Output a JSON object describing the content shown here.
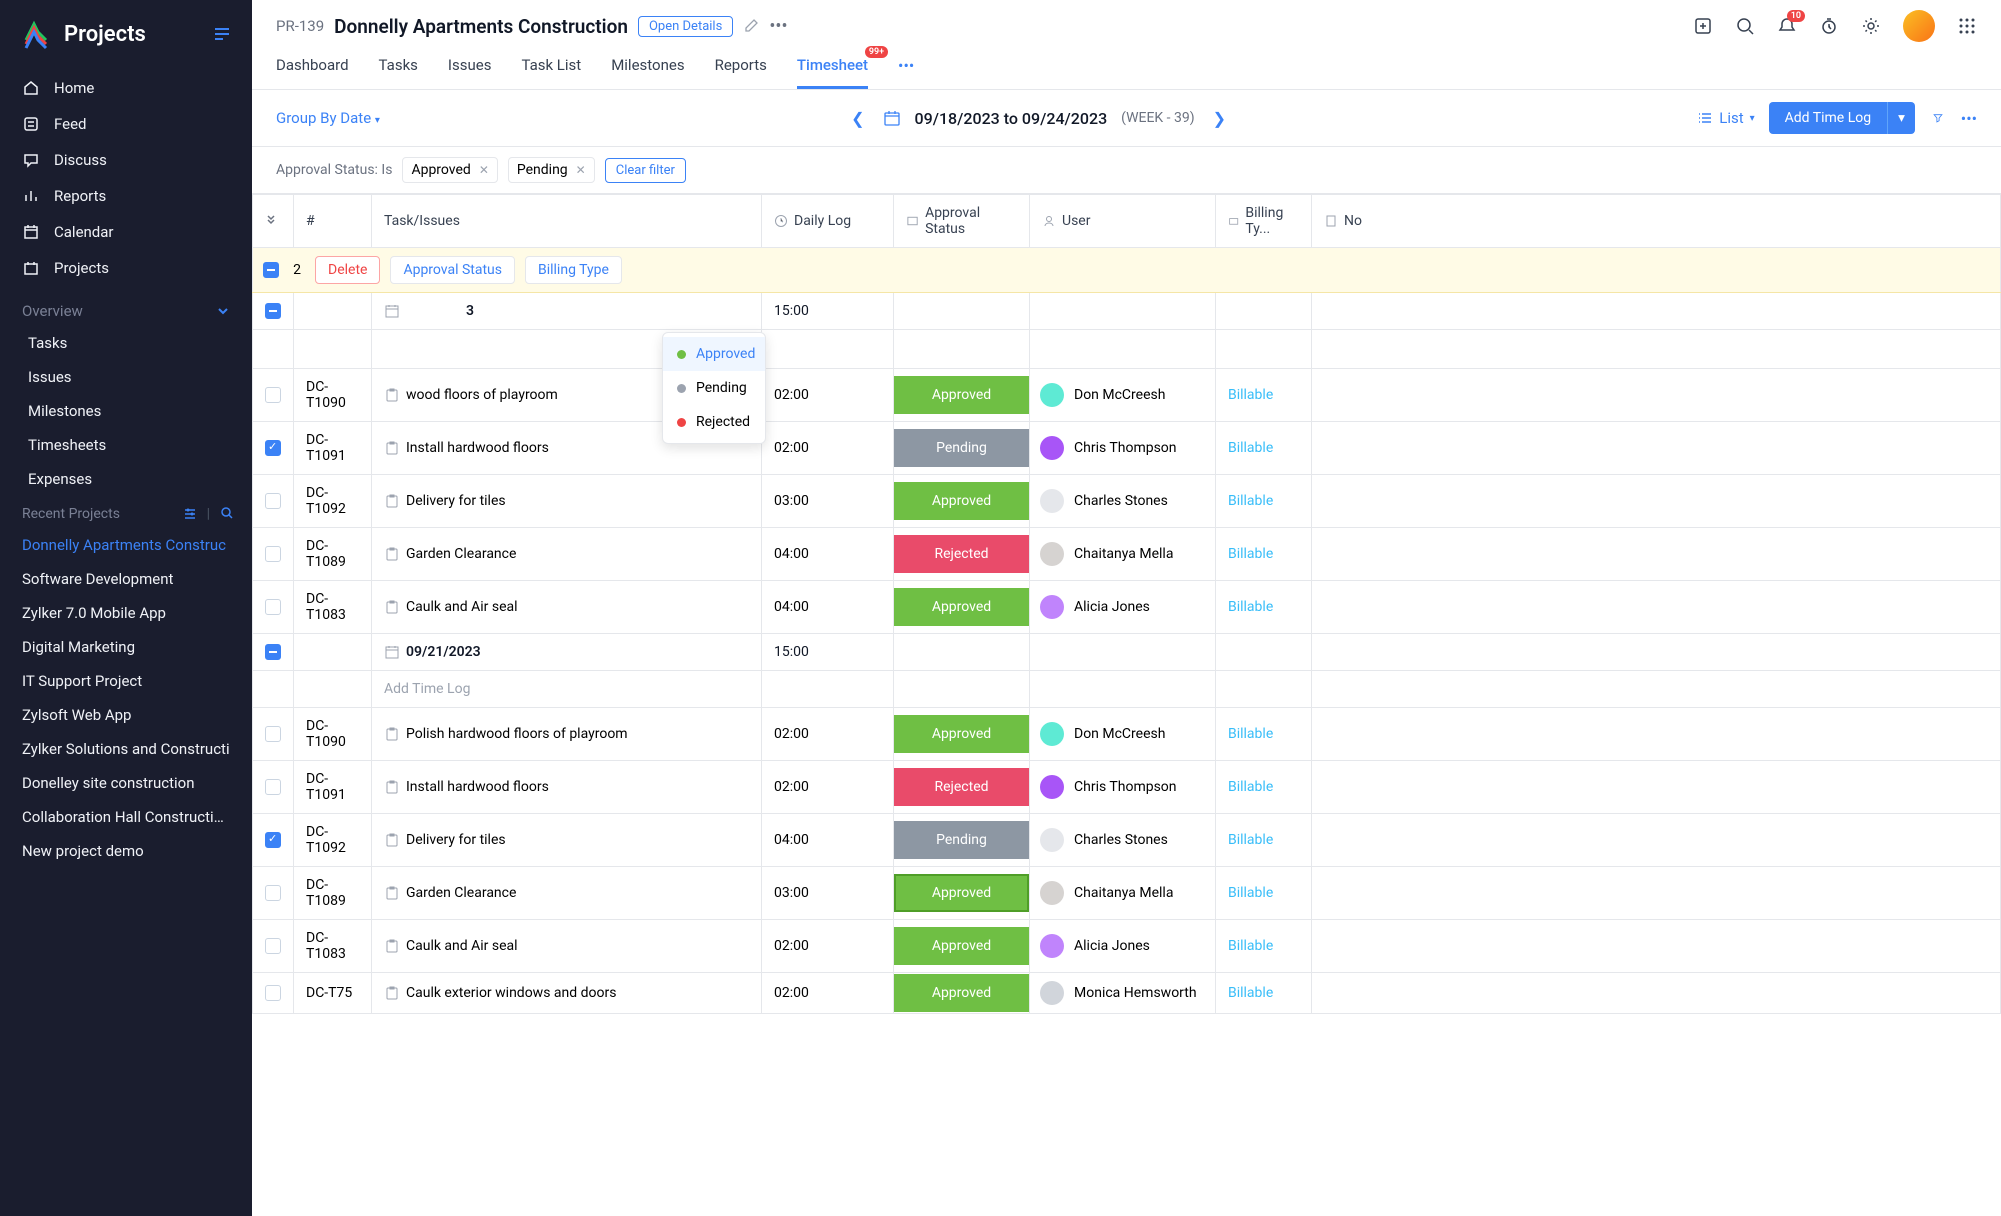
{
  "brand": "Projects",
  "nav": [
    {
      "label": "Home"
    },
    {
      "label": "Feed"
    },
    {
      "label": "Discuss"
    },
    {
      "label": "Reports"
    },
    {
      "label": "Calendar"
    },
    {
      "label": "Projects"
    }
  ],
  "overview_label": "Overview",
  "overview_items": [
    "Tasks",
    "Issues",
    "Milestones",
    "Timesheets",
    "Expenses"
  ],
  "recent_label": "Recent Projects",
  "recent": [
    "Donnelly Apartments Construc",
    "Software Development",
    "Zylker 7.0 Mobile App",
    "Digital Marketing",
    "IT Support Project",
    "Zylsoft Web App",
    "Zylker Solutions and Constructi",
    "Donelley site construction",
    "Collaboration Hall Construction",
    "New project demo"
  ],
  "project": {
    "id": "PR-139",
    "title": "Donnelly Apartments Construction",
    "open_details": "Open Details"
  },
  "notif_badge": "10",
  "tabs": [
    "Dashboard",
    "Tasks",
    "Issues",
    "Task List",
    "Milestones",
    "Reports",
    "Timesheet"
  ],
  "timesheet_badge": "99+",
  "toolbar": {
    "group_by": "Group By Date",
    "date_range": "09/18/2023 to 09/24/2023",
    "week": "(WEEK - 39)",
    "view": "List",
    "add": "Add Time Log"
  },
  "filter": {
    "label": "Approval Status: Is",
    "chips": [
      "Approved",
      "Pending"
    ],
    "clear": "Clear filter"
  },
  "columns": {
    "num": "#",
    "task": "Task/Issues",
    "daily": "Daily Log",
    "status": "Approval Status",
    "user": "User",
    "billing": "Billing Ty...",
    "last": "No"
  },
  "selection": {
    "count": "2",
    "delete": "Delete",
    "approval": "Approval Status",
    "billing": "Billing Type"
  },
  "popup": {
    "approved": "Approved",
    "pending": "Pending",
    "rejected": "Rejected"
  },
  "groups": [
    {
      "date_suffix": "3",
      "total": "15:00",
      "rows": [
        {
          "num": "DC-T1090",
          "task": "wood floors of playroom",
          "time": "02:00",
          "status": "Approved",
          "status_class": "st-approved",
          "user": "Don McCreesh",
          "user_color": "#5eead4",
          "billing": "Billable",
          "checked": false
        },
        {
          "num": "DC-T1091",
          "task": "Install hardwood floors",
          "time": "02:00",
          "status": "Pending",
          "status_class": "st-pending",
          "user": "Chris Thompson",
          "user_color": "#a855f7",
          "billing": "Billable",
          "checked": true
        },
        {
          "num": "DC-T1092",
          "task": "Delivery for tiles",
          "time": "03:00",
          "status": "Approved",
          "status_class": "st-approved",
          "user": "Charles Stones",
          "user_color": "#e5e7eb",
          "billing": "Billable",
          "checked": false
        },
        {
          "num": "DC-T1089",
          "task": "Garden Clearance",
          "time": "04:00",
          "status": "Rejected",
          "status_class": "st-rejected",
          "user": "Chaitanya Mella",
          "user_color": "#d6d3d1",
          "billing": "Billable",
          "checked": false
        },
        {
          "num": "DC-T1083",
          "task": "Caulk and Air seal",
          "time": "04:00",
          "status": "Approved",
          "status_class": "st-approved",
          "user": "Alicia Jones",
          "user_color": "#c084fc",
          "billing": "Billable",
          "checked": false
        }
      ]
    },
    {
      "date": "09/21/2023",
      "total": "15:00",
      "add_log": "Add Time Log",
      "rows": [
        {
          "num": "DC-T1090",
          "task": "Polish hardwood floors of playroom",
          "time": "02:00",
          "status": "Approved",
          "status_class": "st-approved",
          "user": "Don McCreesh",
          "user_color": "#5eead4",
          "billing": "Billable",
          "checked": false
        },
        {
          "num": "DC-T1091",
          "task": "Install hardwood floors",
          "time": "02:00",
          "status": "Rejected",
          "status_class": "st-rejected",
          "user": "Chris Thompson",
          "user_color": "#a855f7",
          "billing": "Billable",
          "checked": false
        },
        {
          "num": "DC-T1092",
          "task": "Delivery for tiles",
          "time": "04:00",
          "status": "Pending",
          "status_class": "st-pending",
          "user": "Charles Stones",
          "user_color": "#e5e7eb",
          "billing": "Billable",
          "checked": true
        },
        {
          "num": "DC-T1089",
          "task": "Garden Clearance",
          "time": "03:00",
          "status": "Approved",
          "status_class": "st-approved outlined",
          "user": "Chaitanya Mella",
          "user_color": "#d6d3d1",
          "billing": "Billable",
          "checked": false
        },
        {
          "num": "DC-T1083",
          "task": "Caulk and Air seal",
          "time": "02:00",
          "status": "Approved",
          "status_class": "st-approved",
          "user": "Alicia Jones",
          "user_color": "#c084fc",
          "billing": "Billable",
          "checked": false
        },
        {
          "num": "DC-T75",
          "task": "Caulk exterior windows and doors",
          "time": "02:00",
          "status": "Approved",
          "status_class": "st-approved",
          "user": "Monica Hemsworth",
          "user_color": "#d1d5db",
          "billing": "Billable",
          "checked": false
        }
      ]
    }
  ]
}
